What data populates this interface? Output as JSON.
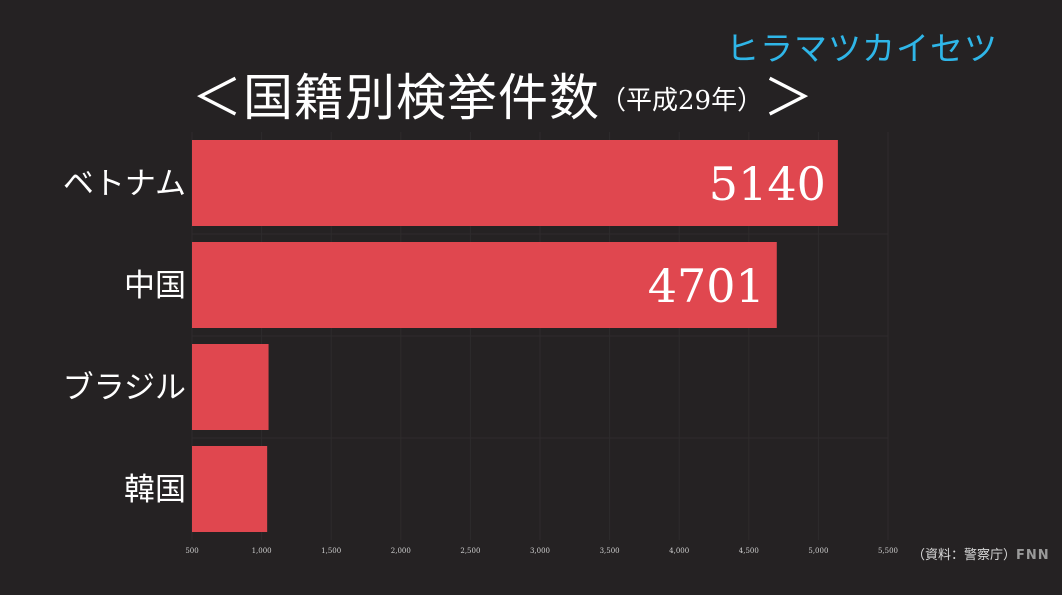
{
  "title": {
    "main": "＜国籍別検挙件数",
    "sub": "（平成29年）",
    "close": "＞"
  },
  "brand": "ヒラマツカイセツ",
  "source": {
    "text": "（資料：警察庁）",
    "logo": "FNN"
  },
  "chart_data": {
    "type": "bar",
    "orientation": "horizontal",
    "title": "＜国籍別検挙件数（平成29年）＞",
    "categories": [
      "ベトナム",
      "中国",
      "ブラジル",
      "韓国"
    ],
    "values": [
      5140,
      4701,
      1050,
      1040
    ],
    "value_labels": [
      "5140",
      "4701",
      "",
      ""
    ],
    "xlim": [
      500,
      5500
    ],
    "tick_values": [
      500,
      1000,
      1500,
      2000,
      2500,
      3000,
      3500,
      4000,
      4500,
      5000,
      5500
    ],
    "tick_labels": [
      "500",
      "1,000",
      "1,500",
      "2,000",
      "2,500",
      "3,000",
      "3,500",
      "4,000",
      "4,500",
      "5,000",
      "5,500"
    ],
    "grid": true,
    "bar_color": "#e0474f",
    "grid_color": "#2e2b2c"
  }
}
